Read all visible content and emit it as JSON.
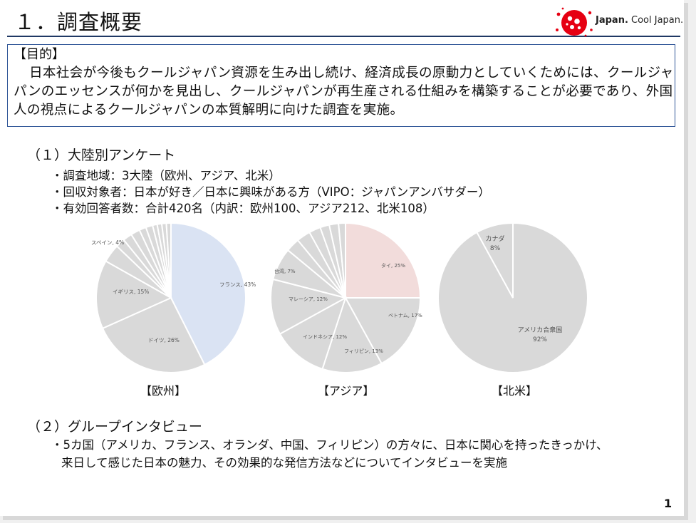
{
  "slide": {
    "title": "１．調査概要",
    "page_number": "1"
  },
  "logo": {
    "text_bold": "Japan.",
    "text_light": " Cool Japan."
  },
  "purpose": {
    "heading": "【目的】",
    "body": "日本社会が今後もクールジャパン資源を生み出し続け、経済成長の原動力としていくためには、クールジャパンのエッセンスが何かを見出し、クールジャパンが再生産される仕組みを構築することが必要であり、外国人の視点によるクールジャパンの本質解明に向けた調査を実施。"
  },
  "section1": {
    "heading": "（１）大陸別アンケート",
    "bullets": [
      "・調査地域：3大陸（欧州、アジア、北米）",
      "・回収対象者：日本が好き／日本に興味がある方（VIPO：ジャパンアンバサダー）",
      "・有効回答者数：合計420名（内訳：欧州100、アジア212、北米108）"
    ]
  },
  "section2": {
    "heading": "（２）グループインタビュー",
    "line1": "・5カ国（アメリカ、フランス、オランダ、中国、フィリピン）の方々に、日本に関心を持ったきっかけ、",
    "line2": "来日して感じた日本の魅力、その効果的な発信方法などについてインタビューを実施"
  },
  "chart_data": [
    {
      "type": "pie",
      "title": "【欧州】",
      "slices": [
        {
          "label": "フランス, 43%",
          "value": 43,
          "color": "#dae3f3"
        },
        {
          "label": "ドイツ, 26%",
          "value": 26,
          "color": "#d9d9d9"
        },
        {
          "label": "イギリス, 15%",
          "value": 15,
          "color": "#d9d9d9"
        },
        {
          "label": "スペイン, 4%",
          "value": 4,
          "color": "#d9d9d9"
        },
        {
          "label": "",
          "value": 2,
          "color": "#d9d9d9"
        },
        {
          "label": "",
          "value": 2,
          "color": "#d9d9d9"
        },
        {
          "label": "",
          "value": 2,
          "color": "#d9d9d9"
        },
        {
          "label": "",
          "value": 1.5,
          "color": "#d9d9d9"
        },
        {
          "label": "",
          "value": 1.5,
          "color": "#d9d9d9"
        },
        {
          "label": "",
          "value": 1,
          "color": "#d9d9d9"
        },
        {
          "label": "",
          "value": 1,
          "color": "#d9d9d9"
        },
        {
          "label": "",
          "value": 1,
          "color": "#d9d9d9"
        },
        {
          "label": "",
          "value": 1,
          "color": "#d9d9d9"
        }
      ]
    },
    {
      "type": "pie",
      "title": "【アジア】",
      "slices": [
        {
          "label": "タイ, 25%",
          "value": 25,
          "color": "#f2dcdb"
        },
        {
          "label": "ベトナム, 17%",
          "value": 17,
          "color": "#d9d9d9"
        },
        {
          "label": "フィリピン, 13%",
          "value": 13,
          "color": "#d9d9d9"
        },
        {
          "label": "インドネシア, 12%",
          "value": 12,
          "color": "#d9d9d9"
        },
        {
          "label": "マレーシア, 12%",
          "value": 12,
          "color": "#d9d9d9"
        },
        {
          "label": "台湾, 7%",
          "value": 7,
          "color": "#d9d9d9"
        },
        {
          "label": "",
          "value": 3,
          "color": "#d9d9d9"
        },
        {
          "label": "",
          "value": 3,
          "color": "#d9d9d9"
        },
        {
          "label": "",
          "value": 2.5,
          "color": "#d9d9d9"
        },
        {
          "label": "",
          "value": 2,
          "color": "#d9d9d9"
        },
        {
          "label": "",
          "value": 2,
          "color": "#d9d9d9"
        },
        {
          "label": "",
          "value": 1.5,
          "color": "#d9d9d9"
        }
      ]
    },
    {
      "type": "pie",
      "title": "【北米】",
      "slices": [
        {
          "label": "アメリカ合衆国\n92%",
          "value": 92,
          "color": "#d9d9d9"
        },
        {
          "label": "カナダ\n8%",
          "value": 8,
          "color": "#d9d9d9"
        }
      ]
    }
  ]
}
